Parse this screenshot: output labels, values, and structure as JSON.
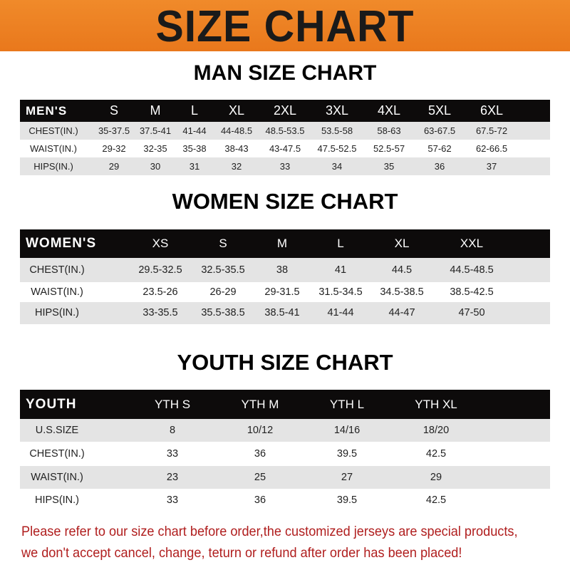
{
  "banner": {
    "title": "SIZE CHART",
    "color": "#ee8024"
  },
  "men": {
    "title": "MAN SIZE CHART",
    "header": [
      "MEN'S",
      "S",
      "M",
      "L",
      "XL",
      "2XL",
      "3XL",
      "4XL",
      "5XL",
      "6XL"
    ],
    "rows": [
      [
        "CHEST(IN.)",
        "35-37.5",
        "37.5-41",
        "41-44",
        "44-48.5",
        "48.5-53.5",
        "53.5-58",
        "58-63",
        "63-67.5",
        "67.5-72"
      ],
      [
        "WAIST(IN.)",
        "29-32",
        "32-35",
        "35-38",
        "38-43",
        "43-47.5",
        "47.5-52.5",
        "52.5-57",
        "57-62",
        "62-66.5"
      ],
      [
        "HIPS(IN.)",
        "29",
        "30",
        "31",
        "32",
        "33",
        "34",
        "35",
        "36",
        "37"
      ]
    ]
  },
  "women": {
    "title": "WOMEN SIZE CHART",
    "header": [
      "WOMEN'S",
      "XS",
      "S",
      "M",
      "L",
      "XL",
      "XXL"
    ],
    "rows": [
      [
        "CHEST(IN.)",
        "29.5-32.5",
        "32.5-35.5",
        "38",
        "41",
        "44.5",
        "44.5-48.5"
      ],
      [
        "WAIST(IN.)",
        "23.5-26",
        "26-29",
        "29-31.5",
        "31.5-34.5",
        "34.5-38.5",
        "38.5-42.5"
      ],
      [
        "HIPS(IN.)",
        "33-35.5",
        "35.5-38.5",
        "38.5-41",
        "41-44",
        "44-47",
        "47-50"
      ]
    ]
  },
  "youth": {
    "title": "YOUTH SIZE CHART",
    "header": [
      "YOUTH",
      "YTH S",
      "YTH M",
      "YTH L",
      "YTH XL"
    ],
    "rows": [
      [
        "U.S.SIZE",
        "8",
        "10/12",
        "14/16",
        "18/20"
      ],
      [
        "CHEST(IN.)",
        "33",
        "36",
        "39.5",
        "42.5"
      ],
      [
        "WAIST(IN.)",
        "23",
        "25",
        "27",
        "29"
      ],
      [
        "HIPS(IN.)",
        "33",
        "36",
        "39.5",
        "42.5"
      ]
    ]
  },
  "footer": {
    "line1": "Please refer to our size chart before order,the customized jerseys are special products,",
    "line2": "we don't accept cancel, change, teturn or refund after order has been placed!",
    "color": "#b01e1e"
  }
}
